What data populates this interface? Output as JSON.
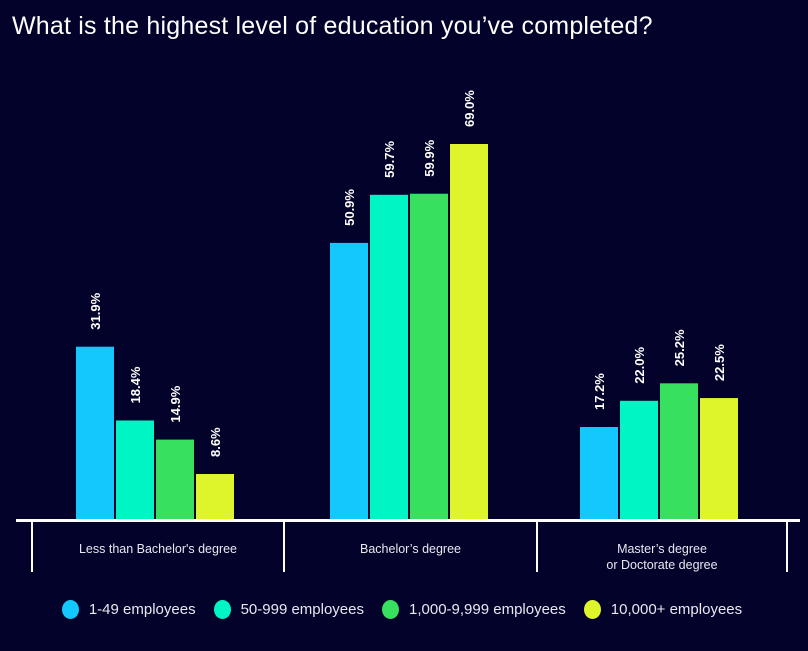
{
  "chart_data": {
    "type": "bar",
    "title": "What is the highest level of education you’ve completed?",
    "categories": [
      [
        "Less than Bachelor's degree"
      ],
      [
        "Bachelor’s degree"
      ],
      [
        "Master’s degree",
        "or Doctorate degree"
      ]
    ],
    "series": [
      {
        "name": "1-49 employees",
        "color": "#12c8fd",
        "values": [
          31.9,
          50.9,
          17.2
        ]
      },
      {
        "name": "50-999 employees",
        "color": "#00f5c4",
        "values": [
          18.4,
          59.7,
          22.0
        ]
      },
      {
        "name": "1,000-9,999 employees",
        "color": "#37e05e",
        "values": [
          14.9,
          59.9,
          25.2
        ]
      },
      {
        "name": "10,000+ employees",
        "color": "#def52b",
        "values": [
          8.6,
          69.0,
          22.5
        ]
      }
    ],
    "value_format": "%",
    "ylim": [
      0,
      69
    ],
    "grid": false,
    "legend_position": "bottom"
  }
}
